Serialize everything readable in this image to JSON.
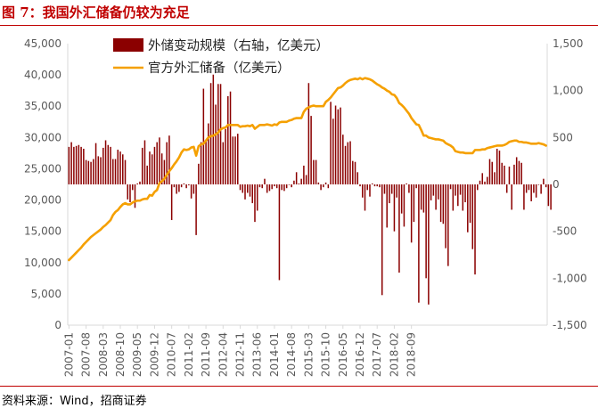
{
  "title": "图 7：我国外汇储备仍较为充足",
  "source": "资料来源：Wind，招商证券",
  "colors": {
    "bar": "#8b0000",
    "line": "#f5a000",
    "title": "#c00000",
    "axis": "#d9d9d9"
  },
  "chart_data": {
    "type": "bar+line",
    "legend_position": "top",
    "grid": false,
    "y_left": {
      "label": "",
      "range": [
        0,
        45000
      ],
      "ticks": [
        "0",
        "5,000",
        "10,000",
        "15,000",
        "20,000",
        "25,000",
        "30,000",
        "35,000",
        "40,000",
        "45,000"
      ]
    },
    "y_right": {
      "label": "",
      "range": [
        -1500,
        1500
      ],
      "ticks": [
        "-1,500",
        "-1,000",
        "-500",
        "0",
        "500",
        "1,000",
        "1,500"
      ]
    },
    "x_tick_labels": [
      "2007-01",
      "2007-08",
      "2008-03",
      "2008-10",
      "2009-05",
      "2009-12",
      "2010-07",
      "2011-02",
      "2011-09",
      "2012-04",
      "2012-11",
      "2013-06",
      "2014-01",
      "2014-08",
      "2015-03",
      "2015-10",
      "2016-05",
      "2016-12",
      "2017-07",
      "2018-02",
      "2018-09"
    ],
    "x_start": "2007-01",
    "x_end": "2018-10",
    "series": [
      {
        "name": "外储变动规模（右轴，亿美元）",
        "type": "bar",
        "axis": "right",
        "values": [
          400,
          450,
          400,
          410,
          420,
          400,
          380,
          260,
          250,
          240,
          270,
          440,
          300,
          290,
          390,
          470,
          420,
          400,
          270,
          270,
          370,
          350,
          320,
          260,
          -160,
          -190,
          -60,
          -250,
          10,
          30,
          390,
          470,
          200,
          350,
          320,
          400,
          450,
          500,
          330,
          260,
          450,
          520,
          -380,
          -30,
          -100,
          -80,
          -30,
          10,
          -40,
          -10,
          -150,
          -100,
          -540,
          220,
          450,
          1020,
          470,
          650,
          1080,
          1170,
          850,
          1070,
          1070,
          450,
          590,
          940,
          990,
          510,
          510,
          540,
          -60,
          -90,
          -160,
          -90,
          -130,
          -200,
          -400,
          -280,
          -30,
          -40,
          60,
          -90,
          -70,
          -50,
          -20,
          -40,
          -1020,
          -60,
          -70,
          -40,
          0,
          -30,
          40,
          130,
          10,
          60,
          200,
          100,
          1080,
          730,
          260,
          260,
          20,
          -60,
          -30,
          20,
          -40,
          880,
          700,
          840,
          800,
          820,
          530,
          410,
          450,
          460,
          250,
          240,
          130,
          -20,
          -140,
          -280,
          -60,
          -130,
          10,
          -20,
          -20,
          -30,
          -1180,
          -100,
          -460,
          -200,
          -100,
          -500,
          -140,
          -940,
          -310,
          -450,
          10,
          -90,
          -620,
          -400,
          -40,
          -1260,
          -270,
          -300,
          -1000,
          -1280,
          -170,
          -120,
          -270,
          -160,
          -400,
          -420,
          -680,
          -870,
          -50,
          -280,
          -120,
          -230,
          -110,
          -280,
          -190,
          -510,
          -410,
          -690,
          -960,
          -60,
          40,
          120,
          30,
          80,
          270,
          240,
          130,
          380,
          360,
          230,
          200,
          -90,
          190,
          -270,
          210,
          290,
          250,
          230,
          -270,
          -90,
          -60,
          -180,
          -90,
          -140,
          0,
          -100,
          60,
          -30,
          -230,
          -270
        ]
      },
      {
        "name": "官方外汇储备（亿美元）",
        "type": "line",
        "axis": "left",
        "values": [
          10400,
          10800,
          11200,
          11600,
          12000,
          12400,
          12900,
          13300,
          13700,
          14100,
          14400,
          14700,
          15000,
          15300,
          15700,
          16000,
          16400,
          16800,
          17600,
          18100,
          18400,
          18900,
          19300,
          19500,
          19300,
          19300,
          19600,
          19800,
          19900,
          19900,
          20100,
          20200,
          20200,
          20800,
          20700,
          21300,
          21600,
          22700,
          23000,
          23400,
          24000,
          24600,
          25100,
          25700,
          26200,
          26800,
          27600,
          28100,
          28000,
          28100,
          28400,
          28500,
          27100,
          28600,
          28900,
          29000,
          29500,
          30000,
          30200,
          30300,
          30500,
          30800,
          31300,
          31500,
          31600,
          32000,
          32000,
          32000,
          32000,
          32000,
          31700,
          31800,
          31800,
          31900,
          31800,
          32000,
          31400,
          31700,
          32000,
          32000,
          32000,
          32100,
          32000,
          31900,
          32100,
          32000,
          32400,
          32500,
          32500,
          32500,
          32700,
          32800,
          33000,
          33100,
          33100,
          33100,
          34100,
          34600,
          34800,
          35000,
          35100,
          35000,
          35000,
          35000,
          35000,
          35700,
          36000,
          36400,
          36900,
          37400,
          37900,
          38000,
          38300,
          38700,
          39000,
          39200,
          39300,
          39400,
          39300,
          39500,
          39300,
          39500,
          39400,
          39300,
          39100,
          38800,
          38500,
          38300,
          38000,
          37800,
          37500,
          37300,
          36900,
          36800,
          36300,
          35500,
          35200,
          34800,
          34300,
          33800,
          33100,
          32600,
          32100,
          32000,
          31200,
          30300,
          30300,
          30000,
          29900,
          29800,
          29700,
          29700,
          29600,
          29500,
          29100,
          28900,
          28700,
          28400,
          27800,
          27700,
          27600,
          27600,
          27500,
          27500,
          27500,
          27500,
          28000,
          28000,
          28000,
          28100,
          28100,
          28300,
          28400,
          28500,
          28600,
          28700,
          28700,
          28700,
          28800,
          29000,
          29300,
          29400,
          29500,
          29500,
          29300,
          29300,
          29200,
          29200,
          29100,
          29000,
          29000,
          29000,
          29100,
          29000,
          28900,
          28700
        ]
      }
    ]
  }
}
